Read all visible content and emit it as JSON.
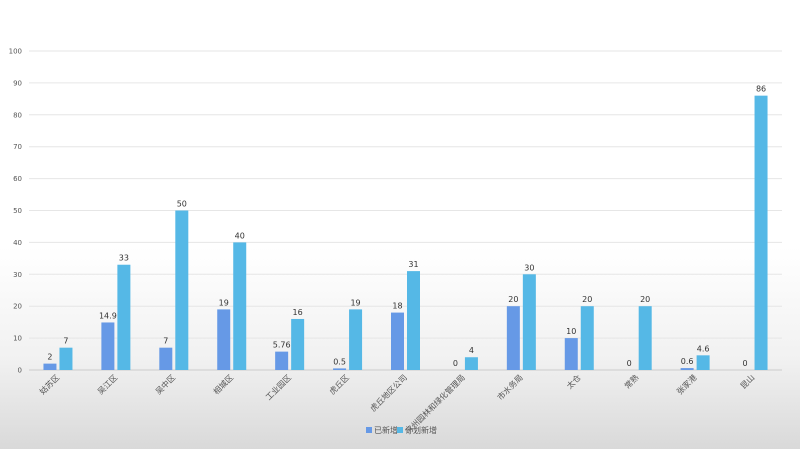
{
  "chart_data": {
    "type": "bar",
    "categories": [
      "姑苏区",
      "吴江区",
      "吴中区",
      "相城区",
      "工业园区",
      "虎丘区",
      "虎丘地区公司",
      "苏州园林和绿化管理局",
      "市水务局",
      "太仓",
      "常熟",
      "张家港",
      "昆山"
    ],
    "series": [
      {
        "name": "已新增",
        "color": "#6699e6",
        "values": [
          2,
          14.9,
          7,
          19,
          5.76,
          0.5,
          18,
          0,
          20,
          10,
          0,
          0.6,
          0
        ],
        "labels": [
          "2",
          "14.9",
          "7",
          "19",
          "5.76",
          "0.5",
          "18",
          "0",
          "20",
          "10",
          "0",
          "0.6",
          "0"
        ]
      },
      {
        "name": "计划新增",
        "color": "#55b8e6",
        "values": [
          7,
          33,
          50,
          40,
          16,
          19,
          31,
          4,
          30,
          20,
          20,
          4.6,
          86
        ],
        "labels": [
          "7",
          "33",
          "50",
          "40",
          "16",
          "19",
          "31",
          "4",
          "30",
          "20",
          "20",
          "4.6",
          "86"
        ]
      }
    ],
    "yticks": [
      "0",
      "10",
      "20",
      "30",
      "40",
      "50",
      "60",
      "70",
      "80",
      "90",
      "100"
    ],
    "ylim": [
      0,
      100
    ],
    "grid": true,
    "legend": "bottom-center",
    "title": "",
    "xlabel": "",
    "ylabel": ""
  }
}
